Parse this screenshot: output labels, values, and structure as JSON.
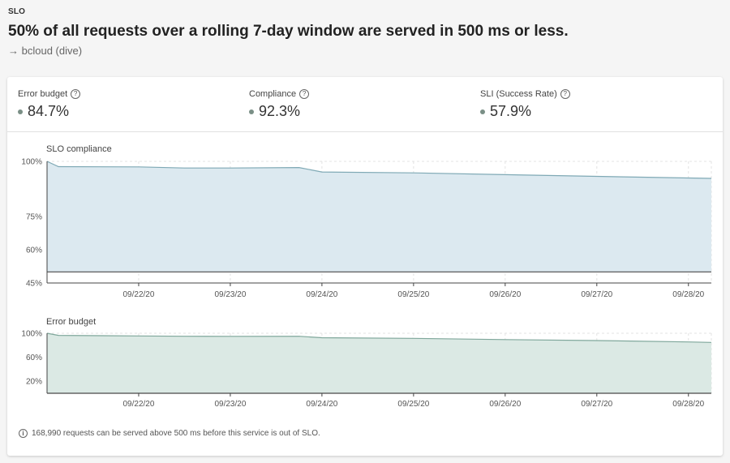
{
  "header": {
    "eyebrow": "SLO",
    "title": "50% of all requests over a rolling 7-day window are served in 500 ms or less.",
    "service_link": "→ bcloud (dive)"
  },
  "stats": [
    {
      "label": "Error budget",
      "value": "84.7%"
    },
    {
      "label": "Compliance",
      "value": "92.3%"
    },
    {
      "label": "SLI (Success Rate)",
      "value": "57.9%"
    }
  ],
  "help_glyph": "?",
  "info_glyph": "i",
  "chart_data": [
    {
      "type": "area",
      "title": "SLO compliance",
      "x": [
        "09/21/20 00:00",
        "09/21/20 03:00",
        "09/22/20 00:00",
        "09/22/20 12:00",
        "09/23/20 00:00",
        "09/23/20 18:00",
        "09/24/20 00:00",
        "09/25/20 00:00",
        "09/26/20 00:00",
        "09/27/20 00:00",
        "09/28/20 00:00",
        "09/28/20 06:00"
      ],
      "series": [
        {
          "values": [
            100,
            97.6,
            97.5,
            97.0,
            97.0,
            97.2,
            95.2,
            94.8,
            94.0,
            93.2,
            92.5,
            92.3
          ]
        }
      ],
      "threshold": 50,
      "x_ticks": [
        "09/22/20",
        "09/23/20",
        "09/24/20",
        "09/25/20",
        "09/26/20",
        "09/27/20",
        "09/28/20"
      ],
      "y_ticks": [
        "100%",
        "75%",
        "60%",
        "45%"
      ],
      "ylim": [
        45,
        100
      ],
      "color": "#dce9f0",
      "line_color": "#7fa9b5",
      "grid": true
    },
    {
      "type": "area",
      "title": "Error budget",
      "x": [
        "09/21/20 00:00",
        "09/21/20 03:00",
        "09/22/20 00:00",
        "09/22/20 12:00",
        "09/23/20 00:00",
        "09/23/20 18:00",
        "09/24/20 00:00",
        "09/25/20 00:00",
        "09/26/20 00:00",
        "09/27/20 00:00",
        "09/28/20 00:00",
        "09/28/20 06:00"
      ],
      "series": [
        {
          "values": [
            100,
            96.5,
            95.5,
            95.0,
            94.8,
            95.0,
            92.5,
            91.5,
            89.5,
            87.8,
            85.5,
            84.7
          ]
        }
      ],
      "threshold": 0,
      "x_ticks": [
        "09/22/20",
        "09/23/20",
        "09/24/20",
        "09/25/20",
        "09/26/20",
        "09/27/20",
        "09/28/20"
      ],
      "y_ticks": [
        "100%",
        "60%",
        "20%"
      ],
      "ylim": [
        0,
        100
      ],
      "color": "#dbe9e4",
      "line_color": "#7fa79b",
      "grid": true
    }
  ],
  "footer": {
    "note": "168,990 requests can be served above 500 ms before this service is out of SLO."
  }
}
